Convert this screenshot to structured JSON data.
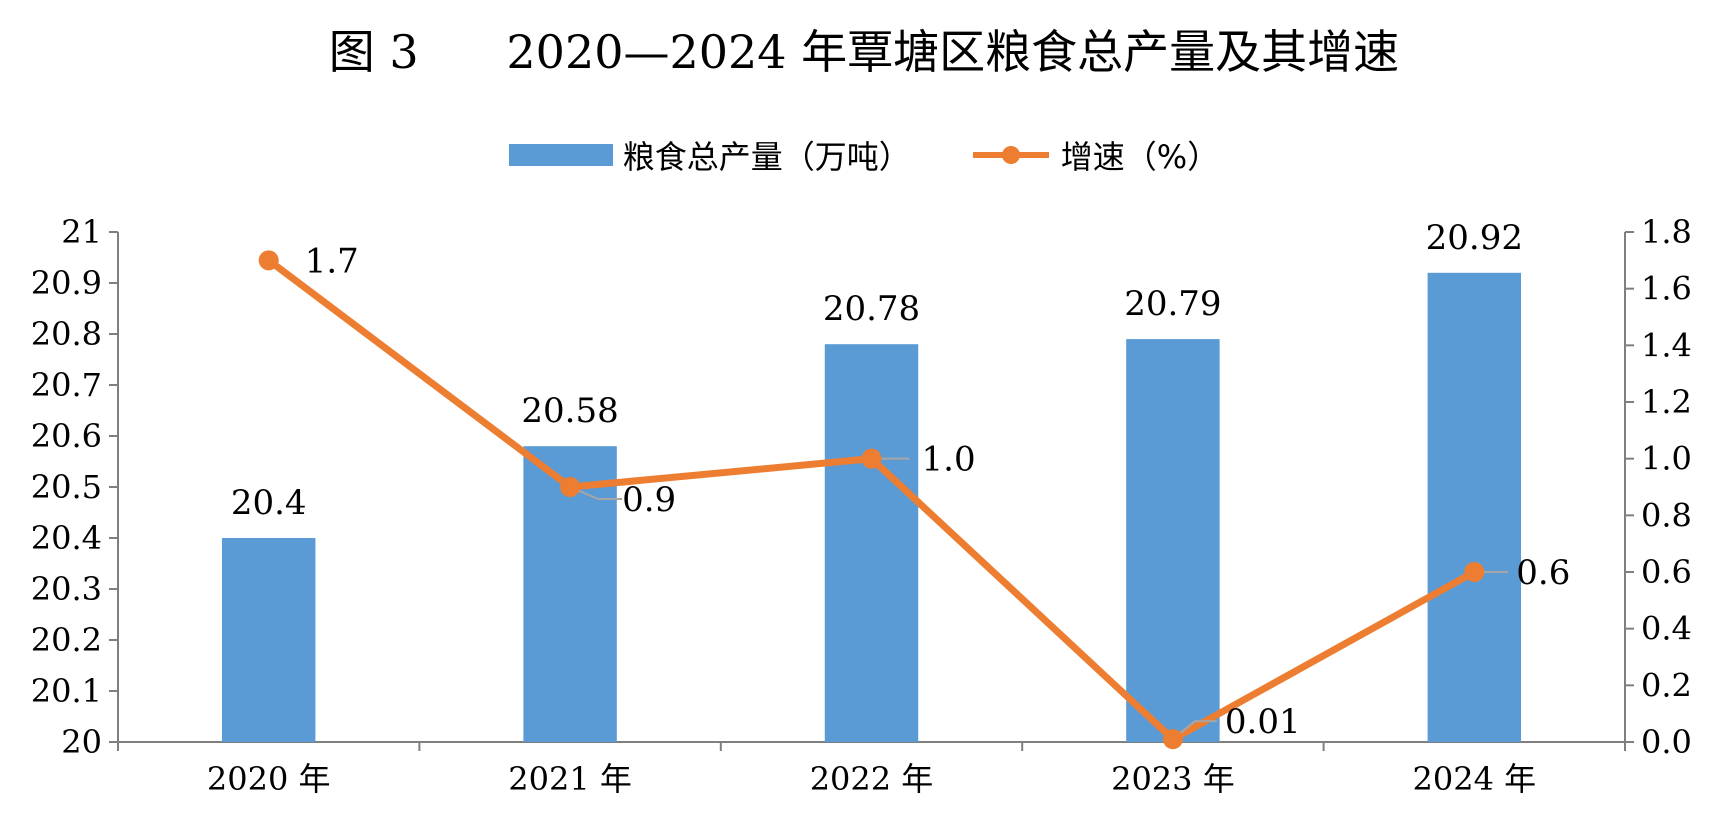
{
  "chart_data": {
    "type": "bar+line",
    "title": "图 3      2020—2024 年覃塘区粮食总产量及其增速",
    "categories": [
      "2020 年",
      "2021 年",
      "2022 年",
      "2023 年",
      "2024 年"
    ],
    "series": [
      {
        "name": "粮食总产量（万吨）",
        "type": "bar",
        "axis": "left",
        "color": "#5B9BD5",
        "values": [
          20.4,
          20.58,
          20.78,
          20.79,
          20.92
        ],
        "labels": [
          "20.4",
          "20.58",
          "20.78",
          "20.79",
          "20.92"
        ]
      },
      {
        "name": "增速（%）",
        "type": "line",
        "axis": "right",
        "color": "#ED7D31",
        "values": [
          1.7,
          0.9,
          1.0,
          0.01,
          0.6
        ],
        "labels": [
          "1.7",
          "0.9",
          "1.0",
          "0.01",
          "0.6"
        ]
      }
    ],
    "y_left": {
      "range": [
        20,
        21
      ],
      "ticks": [
        "20",
        "20.1",
        "20.2",
        "20.3",
        "20.4",
        "20.5",
        "20.6",
        "20.7",
        "20.8",
        "20.9",
        "21"
      ]
    },
    "y_right": {
      "range": [
        0,
        1.8
      ],
      "ticks": [
        "0.0",
        "0.2",
        "0.4",
        "0.6",
        "0.8",
        "1.0",
        "1.2",
        "1.4",
        "1.6",
        "1.8"
      ]
    },
    "legend_position": "top-center",
    "grid": false
  }
}
